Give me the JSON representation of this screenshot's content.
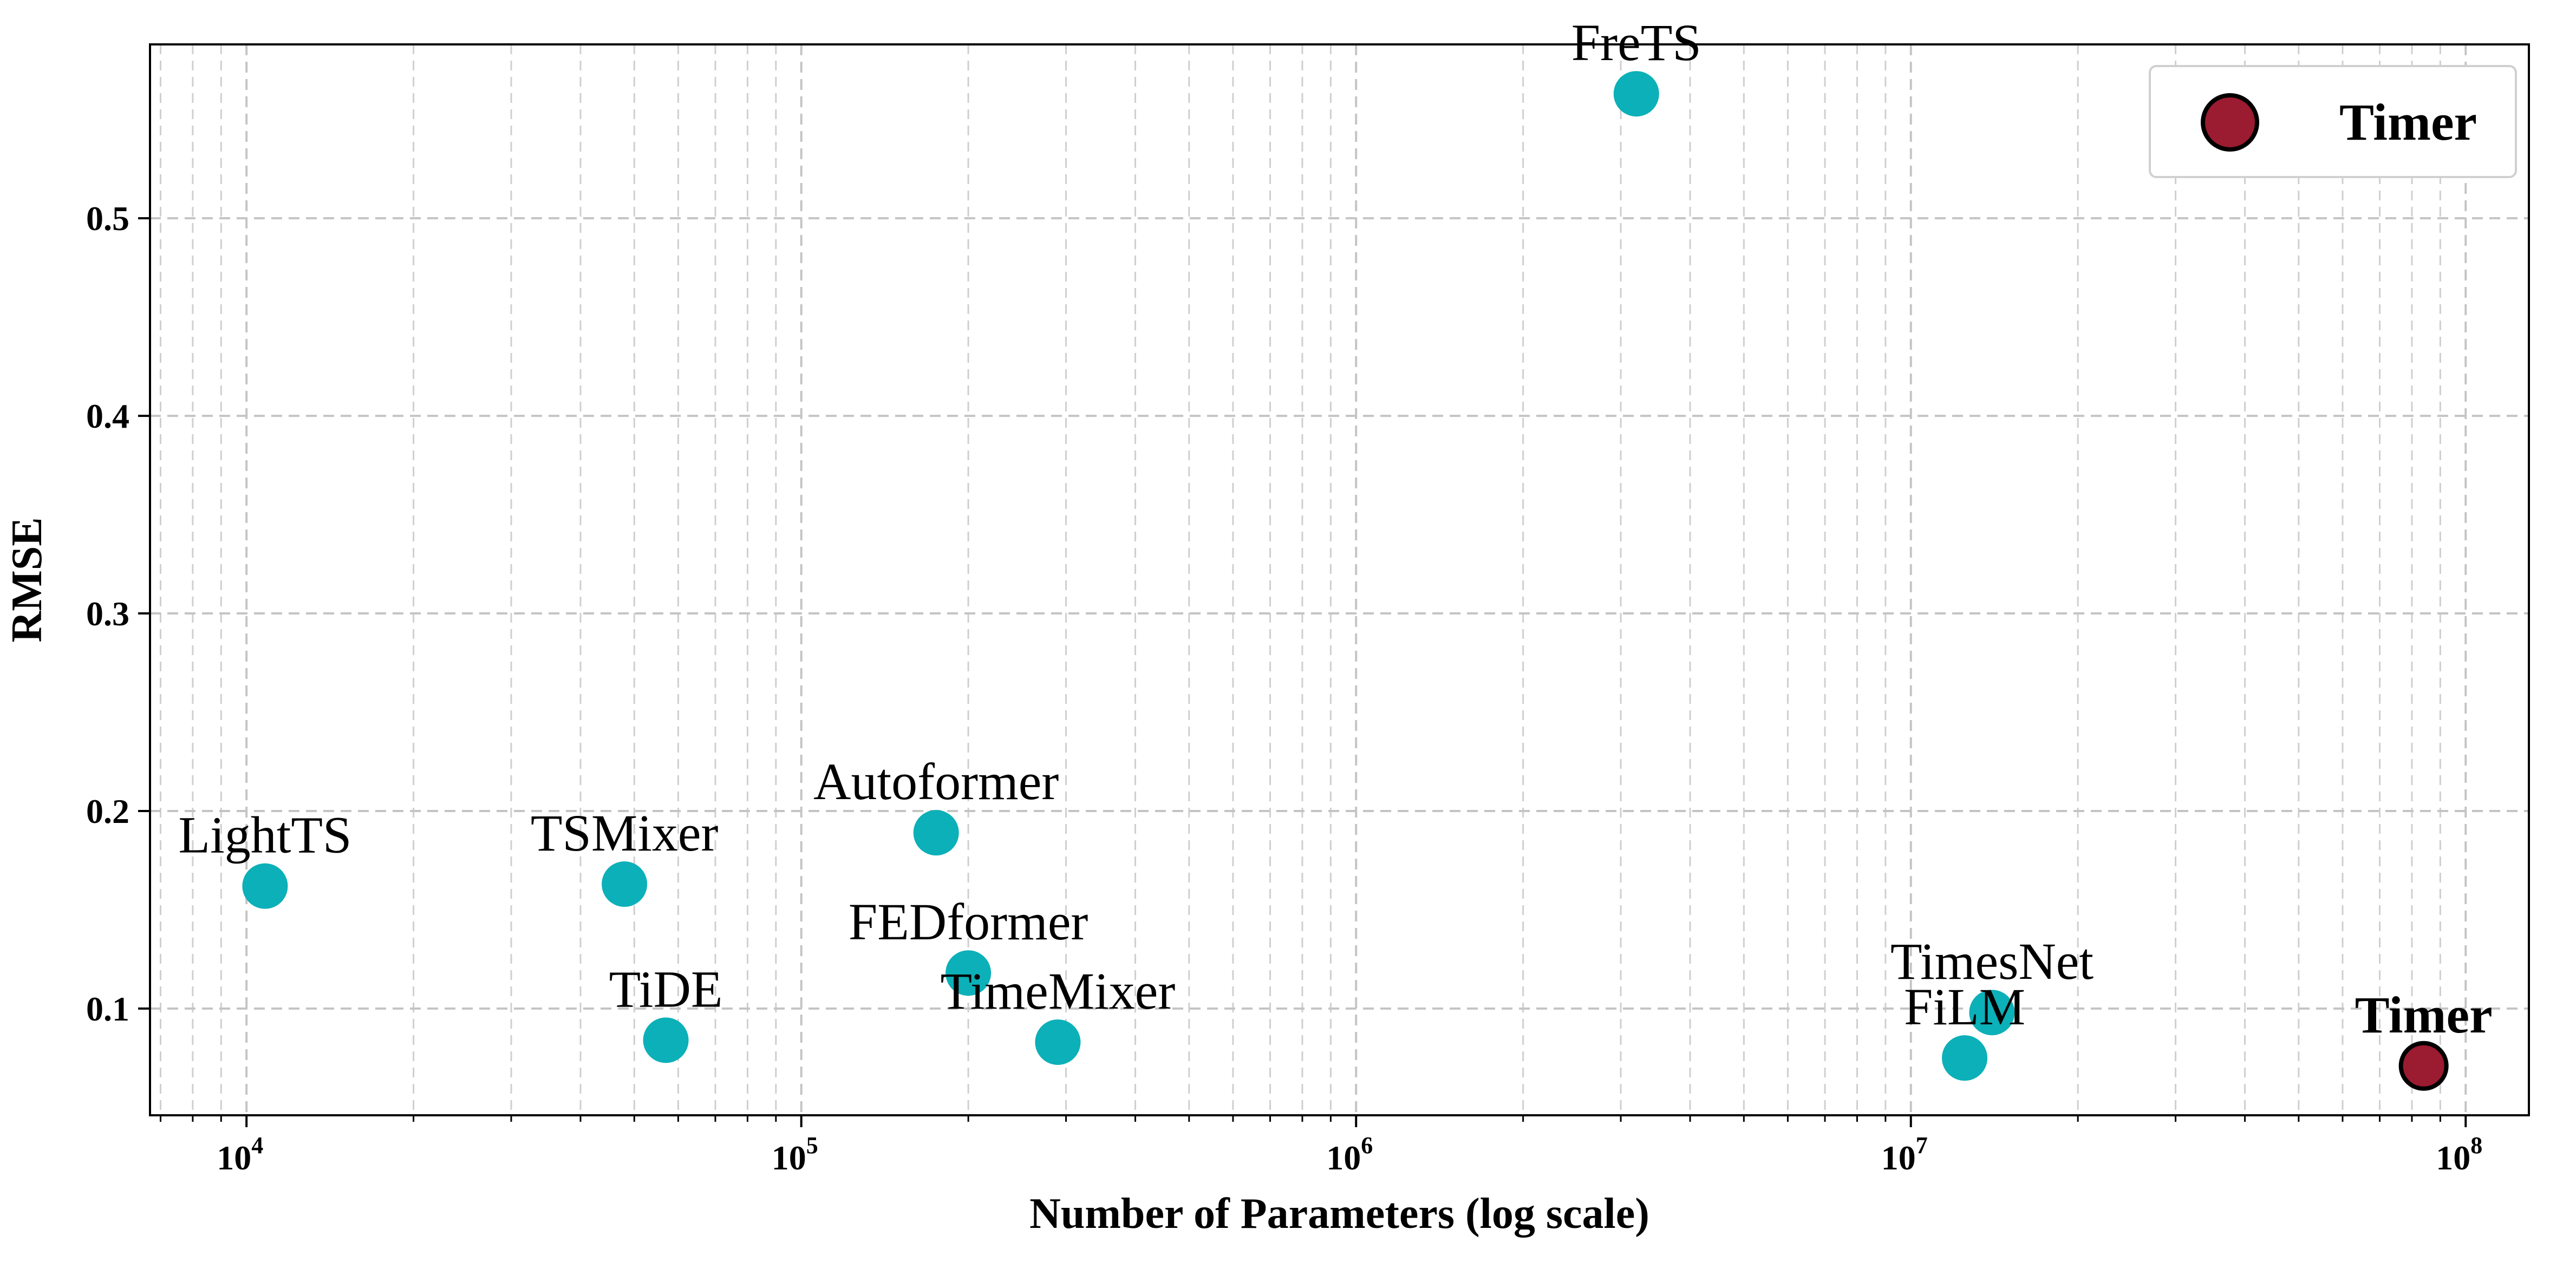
{
  "chart_data": {
    "type": "scatter",
    "xlabel": "Number of Parameters (log scale)",
    "ylabel": "RMSE",
    "xscale": "log",
    "xlim": [
      6700,
      130000000
    ],
    "ylim": [
      0.046,
      0.588
    ],
    "x_ticks": [
      {
        "base": "10",
        "exp": "4",
        "value": 10000
      },
      {
        "base": "10",
        "exp": "5",
        "value": 100000
      },
      {
        "base": "10",
        "exp": "6",
        "value": 1000000
      },
      {
        "base": "10",
        "exp": "7",
        "value": 10000000
      },
      {
        "base": "10",
        "exp": "8",
        "value": 100000000
      }
    ],
    "y_ticks": [
      {
        "label": "0.1",
        "value": 0.1
      },
      {
        "label": "0.2",
        "value": 0.2
      },
      {
        "label": "0.3",
        "value": 0.3
      },
      {
        "label": "0.4",
        "value": 0.4
      },
      {
        "label": "0.5",
        "value": 0.5
      }
    ],
    "grid": true,
    "legend": {
      "position": "top-right",
      "entries": [
        {
          "label": "Timer",
          "color": "#9b1b30"
        }
      ]
    },
    "colors": {
      "baseline": "#0cb0b8",
      "highlight": "#9b1b30",
      "highlight_edge": "#000000"
    },
    "points": [
      {
        "label": "LightTS",
        "x": 10800,
        "y": 0.162,
        "highlight": false
      },
      {
        "label": "TSMixer",
        "x": 48000,
        "y": 0.163,
        "highlight": false
      },
      {
        "label": "TiDE",
        "x": 57000,
        "y": 0.084,
        "highlight": false
      },
      {
        "label": "Autoformer",
        "x": 175000,
        "y": 0.189,
        "highlight": false
      },
      {
        "label": "FEDformer",
        "x": 200000,
        "y": 0.118,
        "highlight": false
      },
      {
        "label": "TimeMixer",
        "x": 290000,
        "y": 0.083,
        "highlight": false
      },
      {
        "label": "FreTS",
        "x": 3200000,
        "y": 0.563,
        "highlight": false
      },
      {
        "label": "TimesNet",
        "x": 14000000,
        "y": 0.098,
        "highlight": false
      },
      {
        "label": "FiLM",
        "x": 12500000,
        "y": 0.075,
        "highlight": false
      },
      {
        "label": "Timer",
        "x": 84000000,
        "y": 0.071,
        "highlight": true
      }
    ]
  }
}
